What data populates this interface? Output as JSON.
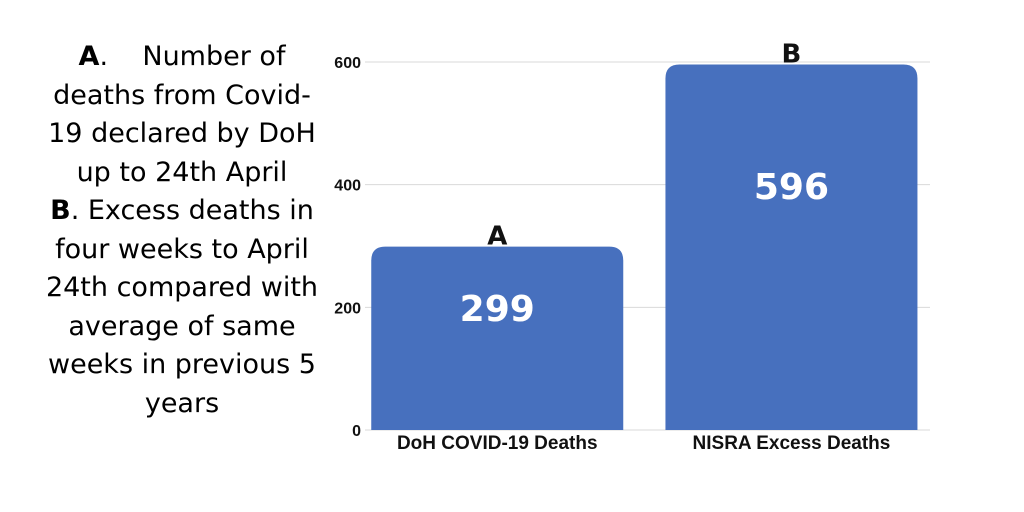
{
  "notes": {
    "a_letter": "A",
    "a_text": "Number of deaths from Covid-19 declared by DoH up to 24th April",
    "b_letter": "B",
    "b_text": "Excess deaths in four weeks to April 24th compared with average of same weeks in previous 5 years"
  },
  "chart_data": {
    "type": "bar",
    "categories": [
      "DoH COVID-19 Deaths",
      "NISRA Excess Deaths"
    ],
    "values": [
      299,
      596
    ],
    "bar_letters": [
      "A",
      "B"
    ],
    "data_labels": [
      "299",
      "596"
    ],
    "yticks": [
      0,
      200,
      400,
      600
    ],
    "ylim": [
      0,
      600
    ],
    "title": "",
    "xlabel": "",
    "ylabel": "",
    "grid": true,
    "colors": {
      "bar": "#4770BE",
      "grid": "#d9d9d9",
      "label": "#ffffff"
    }
  }
}
